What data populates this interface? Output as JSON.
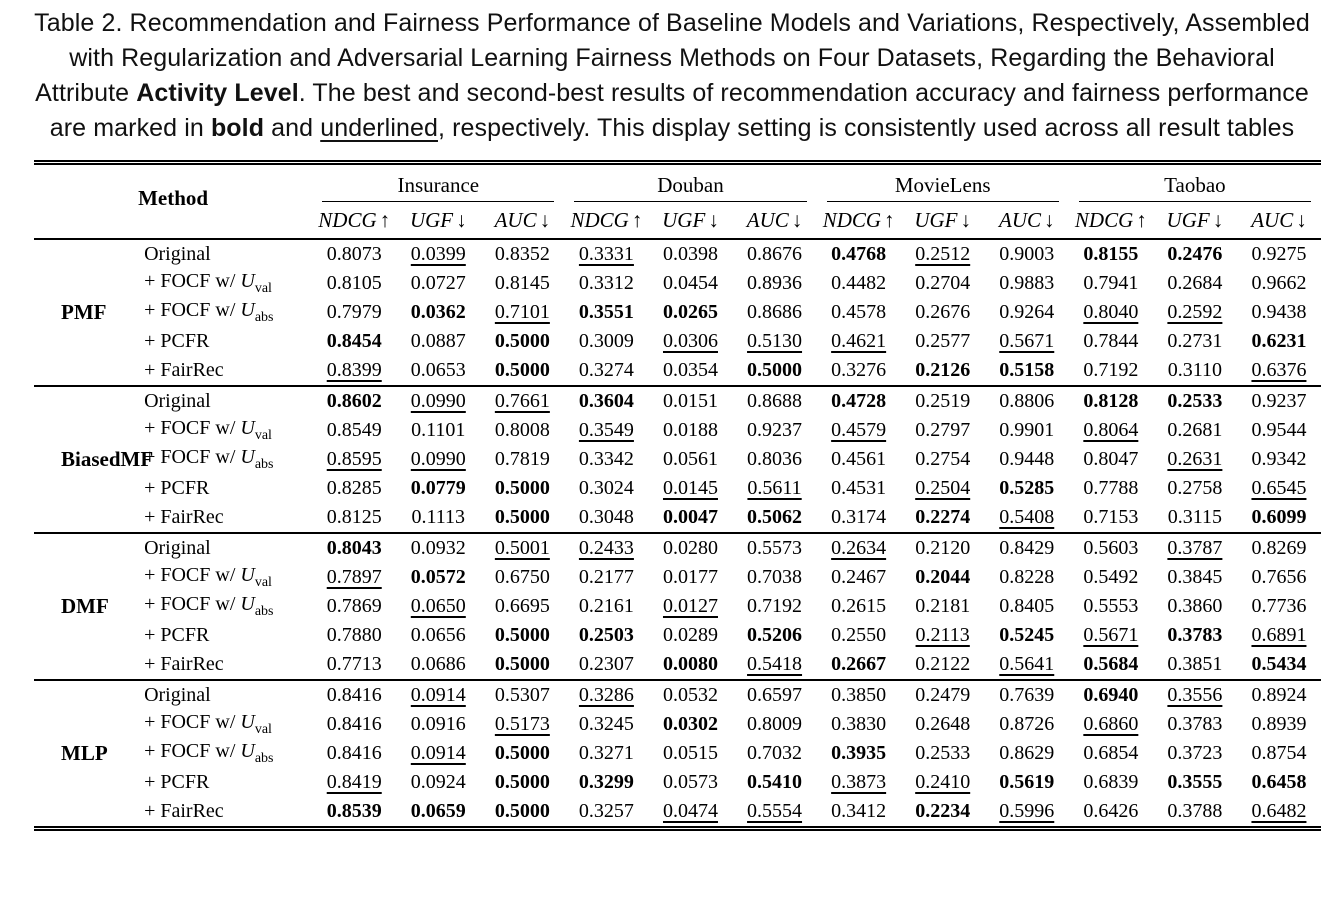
{
  "caption": {
    "segments": [
      {
        "t": "Table 2.  Recommendation and Fairness Performance of Baseline Models and Variations, Respectively, Assembled with Regularization and Adversarial Learning Fairness Methods on Four Datasets, Regarding the Behavioral Attribute ",
        "s": ""
      },
      {
        "t": "Activity Level",
        "s": "b"
      },
      {
        "t": ". The best and second-best results of recommendation accuracy and fairness performance are marked in ",
        "s": ""
      },
      {
        "t": "bold",
        "s": "b"
      },
      {
        "t": " and ",
        "s": ""
      },
      {
        "t": "underlined",
        "s": "u"
      },
      {
        "t": ", respectively. This display setting is consistently used across all result tables",
        "s": ""
      }
    ]
  },
  "table": {
    "method_header": "Method",
    "datasets": [
      "Insurance",
      "Douban",
      "MovieLens",
      "Taobao"
    ],
    "metrics": [
      {
        "name": "NDCG",
        "arrow": "↑"
      },
      {
        "name": "UGF",
        "arrow": "↓"
      },
      {
        "name": "AUC",
        "arrow": "↓"
      }
    ],
    "legend": {
      "best": "bold",
      "second_best": "underlined"
    },
    "groups": [
      {
        "name": "PMF",
        "rows": [
          {
            "label": {
              "pre": "Original"
            },
            "cells": [
              "0.8073",
              "u:0.0399",
              "0.8352",
              "u:0.3331",
              "0.0398",
              "0.8676",
              "b:0.4768",
              "u:0.2512",
              "0.9003",
              "b:0.8155",
              "b:0.2476",
              "0.9275"
            ]
          },
          {
            "label": {
              "pre": "+ FOCF w/ ",
              "var": "U",
              "sub": "val"
            },
            "cells": [
              "0.8105",
              "0.0727",
              "0.8145",
              "0.3312",
              "0.0454",
              "0.8936",
              "0.4482",
              "0.2704",
              "0.9883",
              "0.7941",
              "0.2684",
              "0.9662"
            ]
          },
          {
            "label": {
              "pre": "+ FOCF w/ ",
              "var": "U",
              "sub": "abs"
            },
            "cells": [
              "0.7979",
              "b:0.0362",
              "u:0.7101",
              "b:0.3551",
              "b:0.0265",
              "0.8686",
              "0.4578",
              "0.2676",
              "0.9264",
              "u:0.8040",
              "u:0.2592",
              "0.9438"
            ]
          },
          {
            "label": {
              "pre": "+ PCFR"
            },
            "cells": [
              "b:0.8454",
              "0.0887",
              "b:0.5000",
              "0.3009",
              "u:0.0306",
              "u:0.5130",
              "u:0.4621",
              "0.2577",
              "u:0.5671",
              "0.7844",
              "0.2731",
              "b:0.6231"
            ]
          },
          {
            "label": {
              "pre": "+ FairRec"
            },
            "cells": [
              "u:0.8399",
              "0.0653",
              "b:0.5000",
              "0.3274",
              "0.0354",
              "b:0.5000",
              "0.3276",
              "b:0.2126",
              "b:0.5158",
              "0.7192",
              "0.3110",
              "u:0.6376"
            ]
          }
        ]
      },
      {
        "name": "BiasedMF",
        "rows": [
          {
            "label": {
              "pre": "Original"
            },
            "cells": [
              "b:0.8602",
              "u:0.0990",
              "u:0.7661",
              "b:0.3604",
              "0.0151",
              "0.8688",
              "b:0.4728",
              "0.2519",
              "0.8806",
              "b:0.8128",
              "b:0.2533",
              "0.9237"
            ]
          },
          {
            "label": {
              "pre": "+ FOCF w/ ",
              "var": "U",
              "sub": "val"
            },
            "cells": [
              "0.8549",
              "0.1101",
              "0.8008",
              "u:0.3549",
              "0.0188",
              "0.9237",
              "u:0.4579",
              "0.2797",
              "0.9901",
              "u:0.8064",
              "0.2681",
              "0.9544"
            ]
          },
          {
            "label": {
              "pre": "+ FOCF w/ ",
              "var": "U",
              "sub": "abs"
            },
            "cells": [
              "u:0.8595",
              "u:0.0990",
              "0.7819",
              "0.3342",
              "0.0561",
              "0.8036",
              "0.4561",
              "0.2754",
              "0.9448",
              "0.8047",
              "u:0.2631",
              "0.9342"
            ]
          },
          {
            "label": {
              "pre": "+ PCFR"
            },
            "cells": [
              "0.8285",
              "b:0.0779",
              "b:0.5000",
              "0.3024",
              "u:0.0145",
              "u:0.5611",
              "0.4531",
              "u:0.2504",
              "b:0.5285",
              "0.7788",
              "0.2758",
              "u:0.6545"
            ]
          },
          {
            "label": {
              "pre": "+ FairRec"
            },
            "cells": [
              "0.8125",
              "0.1113",
              "b:0.5000",
              "0.3048",
              "b:0.0047",
              "b:0.5062",
              "0.3174",
              "b:0.2274",
              "u:0.5408",
              "0.7153",
              "0.3115",
              "b:0.6099"
            ]
          }
        ]
      },
      {
        "name": "DMF",
        "rows": [
          {
            "label": {
              "pre": "Original"
            },
            "cells": [
              "b:0.8043",
              "0.0932",
              "u:0.5001",
              "u:0.2433",
              "0.0280",
              "0.5573",
              "u:0.2634",
              "0.2120",
              "0.8429",
              "0.5603",
              "u:0.3787",
              "0.8269"
            ]
          },
          {
            "label": {
              "pre": "+ FOCF w/ ",
              "var": "U",
              "sub": "val"
            },
            "cells": [
              "u:0.7897",
              "b:0.0572",
              "0.6750",
              "0.2177",
              "0.0177",
              "0.7038",
              "0.2467",
              "b:0.2044",
              "0.8228",
              "0.5492",
              "0.3845",
              "0.7656"
            ]
          },
          {
            "label": {
              "pre": "+ FOCF w/ ",
              "var": "U",
              "sub": "abs"
            },
            "cells": [
              "0.7869",
              "u:0.0650",
              "0.6695",
              "0.2161",
              "u:0.0127",
              "0.7192",
              "0.2615",
              "0.2181",
              "0.8405",
              "0.5553",
              "0.3860",
              "0.7736"
            ]
          },
          {
            "label": {
              "pre": "+ PCFR"
            },
            "cells": [
              "0.7880",
              "0.0656",
              "b:0.5000",
              "b:0.2503",
              "0.0289",
              "b:0.5206",
              "0.2550",
              "u:0.2113",
              "b:0.5245",
              "u:0.5671",
              "b:0.3783",
              "u:0.6891"
            ]
          },
          {
            "label": {
              "pre": "+ FairRec"
            },
            "cells": [
              "0.7713",
              "0.0686",
              "b:0.5000",
              "0.2307",
              "b:0.0080",
              "u:0.5418",
              "b:0.2667",
              "0.2122",
              "u:0.5641",
              "b:0.5684",
              "0.3851",
              "b:0.5434"
            ]
          }
        ]
      },
      {
        "name": "MLP",
        "rows": [
          {
            "label": {
              "pre": "Original"
            },
            "cells": [
              "0.8416",
              "u:0.0914",
              "0.5307",
              "u:0.3286",
              "0.0532",
              "0.6597",
              "0.3850",
              "0.2479",
              "0.7639",
              "b:0.6940",
              "u:0.3556",
              "0.8924"
            ]
          },
          {
            "label": {
              "pre": "+ FOCF w/ ",
              "var": "U",
              "sub": "val"
            },
            "cells": [
              "0.8416",
              "0.0916",
              "u:0.5173",
              "0.3245",
              "b:0.0302",
              "0.8009",
              "0.3830",
              "0.2648",
              "0.8726",
              "u:0.6860",
              "0.3783",
              "0.8939"
            ]
          },
          {
            "label": {
              "pre": "+ FOCF w/ ",
              "var": "U",
              "sub": "abs"
            },
            "cells": [
              "0.8416",
              "u:0.0914",
              "b:0.5000",
              "0.3271",
              "0.0515",
              "0.7032",
              "b:0.3935",
              "0.2533",
              "0.8629",
              "0.6854",
              "0.3723",
              "0.8754"
            ]
          },
          {
            "label": {
              "pre": "+ PCFR"
            },
            "cells": [
              "u:0.8419",
              "0.0924",
              "b:0.5000",
              "b:0.3299",
              "0.0573",
              "b:0.5410",
              "u:0.3873",
              "u:0.2410",
              "b:0.5619",
              "0.6839",
              "b:0.3555",
              "b:0.6458"
            ]
          },
          {
            "label": {
              "pre": "+ FairRec"
            },
            "cells": [
              "b:0.8539",
              "b:0.0659",
              "b:0.5000",
              "0.3257",
              "u:0.0474",
              "u:0.5554",
              "0.3412",
              "b:0.2234",
              "u:0.5996",
              "0.6426",
              "0.3788",
              "u:0.6482"
            ]
          }
        ]
      }
    ]
  }
}
